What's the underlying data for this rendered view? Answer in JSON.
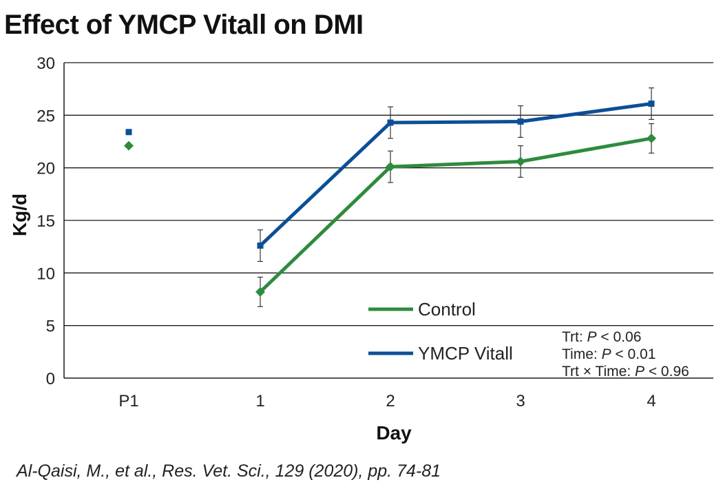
{
  "title": "Effect of YMCP Vitall on DMI",
  "citation": "Al-Qaisi, M., et al., Res. Vet. Sci., 129 (2020), pp. 74-81",
  "chart_data": {
    "type": "line",
    "title": "Effect of YMCP Vitall on DMI",
    "xlabel": "Day",
    "ylabel": "Kg/d",
    "ylim": [
      0,
      30
    ],
    "yticks": [
      "0",
      "5",
      "10",
      "15",
      "20",
      "25",
      "30"
    ],
    "categories": [
      "P1",
      "1",
      "2",
      "3",
      "4"
    ],
    "grid": true,
    "series": [
      {
        "name": "Control",
        "color": "#2e8b3e",
        "marker": "diamond",
        "values": [
          22.1,
          8.2,
          20.1,
          20.6,
          22.8
        ],
        "errors": [
          null,
          1.4,
          1.5,
          1.5,
          1.4
        ],
        "connected_from_index": 1
      },
      {
        "name": "YMCP Vitall",
        "color": "#0b4f96",
        "marker": "square",
        "values": [
          23.4,
          12.6,
          24.3,
          24.4,
          26.1
        ],
        "errors": [
          null,
          1.5,
          1.5,
          1.5,
          1.5
        ],
        "connected_from_index": 1
      }
    ],
    "legend_position": "bottom-center",
    "annotations": [
      {
        "label": "Trt: ",
        "symbol": "P",
        "rest": " < 0.06"
      },
      {
        "label": "Time: ",
        "symbol": "P",
        "rest": " < 0.01"
      },
      {
        "label": "Trt × Time: ",
        "symbol": "P",
        "rest": " < 0.96"
      }
    ]
  }
}
